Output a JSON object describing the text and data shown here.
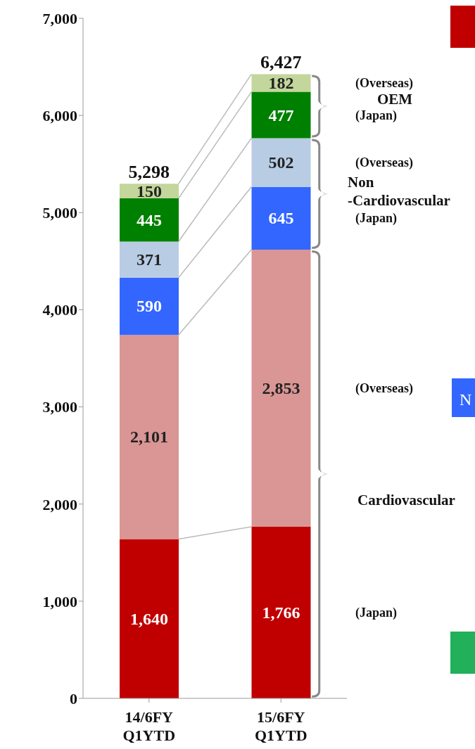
{
  "chart_data": {
    "type": "bar",
    "stacked": true,
    "categories": [
      "14/6FY\nQ1YTD",
      "15/6FY\nQ1YTD"
    ],
    "series": [
      {
        "name": "(Japan)",
        "color": "#c00000",
        "values": [
          1640,
          1766
        ],
        "value_labels": [
          "1,640",
          "1,766"
        ]
      },
      {
        "name": "(Overseas)",
        "color": "#d99694",
        "values": [
          2101,
          2853
        ],
        "value_labels": [
          "2,101",
          "2,853"
        ]
      },
      {
        "name": "(Japan)",
        "color": "#3366ff",
        "values": [
          590,
          645
        ]
      },
      {
        "name": "(Overseas)",
        "color": "#b8cce4",
        "values": [
          371,
          502
        ]
      },
      {
        "name": "(Japan)",
        "color": "#008000",
        "values": [
          445,
          477
        ]
      },
      {
        "name": "(Overseas)",
        "color": "#c3d69b",
        "values": [
          150,
          182
        ]
      }
    ],
    "totals": [
      "5,298",
      "6,427"
    ],
    "data_labels": true,
    "ylim": [
      0,
      7000
    ],
    "yticks": [
      0,
      {
        "value": 1000,
        "label": "1,000"
      },
      {
        "value": 2000,
        "label": "2,000"
      },
      {
        "value": 3000,
        "label": "3,000"
      },
      {
        "value": 4000,
        "label": "4,000"
      },
      {
        "value": 5000,
        "label": "5,000"
      },
      {
        "value": 6000,
        "label": "6,000"
      },
      {
        "value": 7000,
        "label": "7,000"
      }
    ],
    "grid": false,
    "legend": false,
    "annotations": [
      "Cardiovascular",
      "Non\n-Cardiovascular",
      "OEM",
      "N"
    ]
  }
}
